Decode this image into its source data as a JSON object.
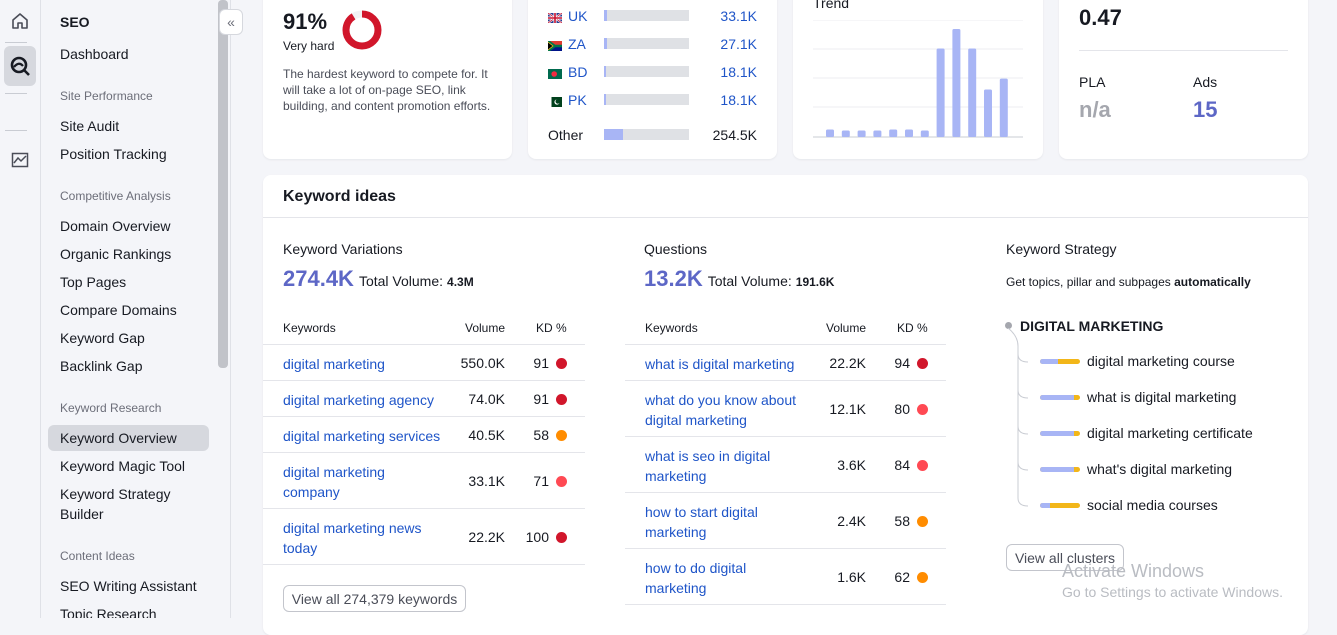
{
  "sidebar": {
    "title": "SEO",
    "dashboard": "Dashboard",
    "sections": {
      "site_performance": "Site Performance",
      "competitive_analysis": "Competitive Analysis",
      "keyword_research": "Keyword Research",
      "content_ideas": "Content Ideas"
    },
    "items": {
      "site_audit": "Site Audit",
      "position_tracking": "Position Tracking",
      "domain_overview": "Domain Overview",
      "organic_rankings": "Organic Rankings",
      "top_pages": "Top Pages",
      "compare_domains": "Compare Domains",
      "keyword_gap": "Keyword Gap",
      "backlink_gap": "Backlink Gap",
      "keyword_overview": "Keyword Overview",
      "keyword_magic_tool": "Keyword Magic Tool",
      "keyword_strategy_builder_1": "Keyword Strategy",
      "keyword_strategy_builder_2": "Builder",
      "seo_writing_assistant": "SEO Writing Assistant",
      "topic_research": "Topic Research"
    }
  },
  "kd_card": {
    "value": "91%",
    "label": "Very hard",
    "percent": 91,
    "description": "The hardest keyword to compete for. It will take a lot of on-page SEO, link building, and content promotion efforts."
  },
  "countries": [
    {
      "code": "UK",
      "value": "33.1K",
      "fill": 0.04
    },
    {
      "code": "ZA",
      "value": "27.1K",
      "fill": 0.03
    },
    {
      "code": "BD",
      "value": "18.1K",
      "fill": 0.02
    },
    {
      "code": "PK",
      "value": "18.1K",
      "fill": 0.02
    }
  ],
  "countries_other": {
    "label": "Other",
    "value": "254.5K",
    "fill": 0.22
  },
  "trend": {
    "title": "Trend",
    "values": [
      0.07,
      0.06,
      0.06,
      0.06,
      0.07,
      0.07,
      0.06,
      0.82,
      1.0,
      0.82,
      0.44,
      0.54
    ]
  },
  "cpc_card": {
    "value": "0.47",
    "pla_label": "PLA",
    "pla_value": "n/a",
    "ads_label": "Ads",
    "ads_value": "15"
  },
  "keyword_ideas": {
    "title": "Keyword ideas",
    "variations": {
      "title": "Keyword Variations",
      "count": "274.4K",
      "total_label": "Total Volume:",
      "total_value": "4.3M",
      "headers": {
        "keywords": "Keywords",
        "volume": "Volume",
        "kd": "KD %"
      },
      "rows": [
        {
          "kw1": "digital marketing",
          "kw2": "",
          "volume": "550.0K",
          "kd": "91",
          "color": "#d1162b"
        },
        {
          "kw1": "digital marketing agency",
          "kw2": "",
          "volume": "74.0K",
          "kd": "91",
          "color": "#d1162b"
        },
        {
          "kw1": "digital marketing services",
          "kw2": "",
          "volume": "40.5K",
          "kd": "58",
          "color": "#ff8c00"
        },
        {
          "kw1": "digital marketing",
          "kw2": "company",
          "volume": "33.1K",
          "kd": "71",
          "color": "#ff4953"
        },
        {
          "kw1": "digital marketing news",
          "kw2": "today",
          "volume": "22.2K",
          "kd": "100",
          "color": "#d1162b"
        }
      ],
      "view_all": "View all 274,379 keywords"
    },
    "questions": {
      "title": "Questions",
      "count": "13.2K",
      "total_label": "Total Volume:",
      "total_value": "191.6K",
      "headers": {
        "keywords": "Keywords",
        "volume": "Volume",
        "kd": "KD %"
      },
      "rows": [
        {
          "kw1": "what is digital marketing",
          "kw2": "",
          "volume": "22.2K",
          "kd": "94",
          "color": "#d1162b"
        },
        {
          "kw1": "what do you know about",
          "kw2": "digital marketing",
          "volume": "12.1K",
          "kd": "80",
          "color": "#ff4953"
        },
        {
          "kw1": "what is seo in digital",
          "kw2": "marketing",
          "volume": "3.6K",
          "kd": "84",
          "color": "#ff4953"
        },
        {
          "kw1": "how to start digital",
          "kw2": "marketing",
          "volume": "2.4K",
          "kd": "58",
          "color": "#ff8c00"
        },
        {
          "kw1": "how to do digital",
          "kw2": "marketing",
          "volume": "1.6K",
          "kd": "62",
          "color": "#ff8c00"
        }
      ]
    },
    "strategy": {
      "title": "Keyword Strategy",
      "subtitle_pre": "Get topics, pillar and subpages",
      "subtitle_bold": "automatically",
      "root": "DIGITAL MARKETING",
      "clusters": [
        {
          "label": "digital marketing course",
          "fill": 0.45
        },
        {
          "label": "what is digital marketing",
          "fill": 0.85
        },
        {
          "label": "digital marketing certificate",
          "fill": 0.85
        },
        {
          "label": "what's digital marketing",
          "fill": 0.85
        },
        {
          "label": "social media courses",
          "fill": 0.25
        }
      ],
      "view_all": "View all clusters"
    }
  },
  "watermark": {
    "line1": "Activate Windows",
    "line2": "Go to Settings to activate Windows."
  }
}
